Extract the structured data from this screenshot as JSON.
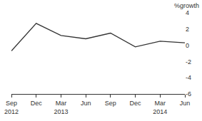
{
  "chart_data": {
    "type": "line",
    "y_label": "%growth",
    "categories": [
      "Sep 2012",
      "Dec",
      "Mar 2013",
      "Jun",
      "Sep",
      "Dec",
      "Mar 2014",
      "Jun"
    ],
    "values": [
      -0.7,
      2.7,
      1.2,
      0.8,
      1.5,
      -0.2,
      0.5,
      0.3
    ],
    "color": "#333333",
    "ylim": [
      -6,
      4
    ],
    "yticks": [
      -6,
      -4,
      -2,
      0,
      2,
      4
    ],
    "grid": false
  }
}
